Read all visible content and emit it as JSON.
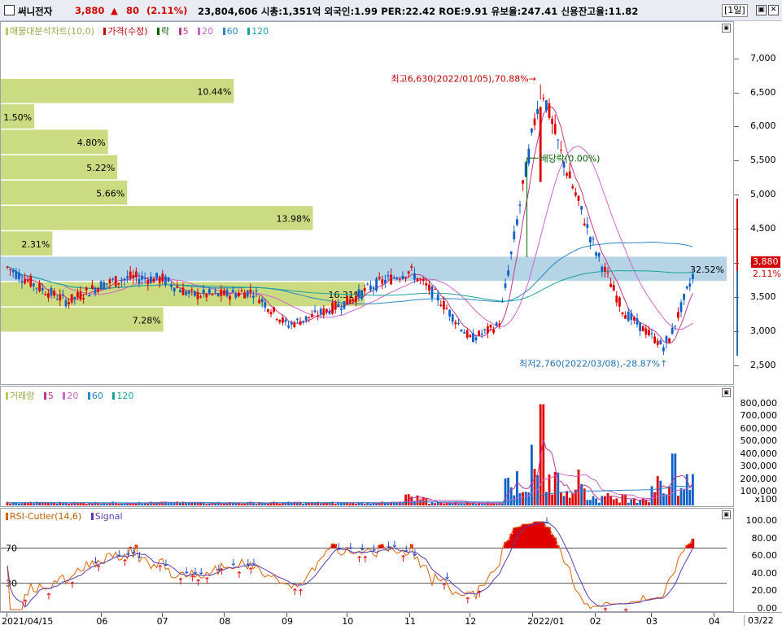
{
  "header": {
    "stock_name": "써니전자",
    "price": "3,880",
    "change_arrow": "▲",
    "change_value": "80",
    "change_pct": "(2.11%)",
    "stats": "23,804,606  시총:1,351억  외국인:1.99  PER:22.42  ROE:9.91  유보율:247.41  신용잔고율:11.82",
    "period": "[1일]"
  },
  "price_panel": {
    "legend": {
      "volume_profile": "매물대분석차트(10,0)",
      "price": "가격(수정)",
      "down": "락",
      "ma5": "5",
      "ma20": "20",
      "ma60": "60",
      "ma120": "120"
    },
    "annotations": {
      "high": "최고6,630(2022/01/05),70.88%",
      "low": "최저2,760(2022/03/08),-28.87%",
      "ex": "배당락(0.00%)"
    },
    "volume_profile": [
      {
        "label": "10.44%",
        "pct": 10.44
      },
      {
        "label": "1.50%",
        "pct": 1.5
      },
      {
        "label": "4.80%",
        "pct": 4.8
      },
      {
        "label": "5.22%",
        "pct": 5.22
      },
      {
        "label": "5.66%",
        "pct": 5.66
      },
      {
        "label": "13.98%",
        "pct": 13.98
      },
      {
        "label": "2.31%",
        "pct": 2.31
      },
      {
        "label": "32.52%",
        "pct": 32.52
      },
      {
        "label": "16.31%",
        "pct": 16.31
      },
      {
        "label": "7.28%",
        "pct": 7.28
      }
    ],
    "axis_ticks": [
      "7,000",
      "6,500",
      "6,000",
      "5,500",
      "5,000",
      "4,500",
      "4,000",
      "3,500",
      "3,000",
      "2,500"
    ],
    "current_price": "3,880",
    "current_pct": "2.11%"
  },
  "volume_panel": {
    "legend": {
      "name": "거래량",
      "ma5": "5",
      "ma20": "20",
      "ma60": "60",
      "ma120": "120"
    },
    "axis_ticks": [
      "800,000",
      "700,000",
      "600,000",
      "500,000",
      "400,000",
      "300,000",
      "200,000",
      "100,000"
    ],
    "unit": "x100"
  },
  "rsi_panel": {
    "legend": {
      "name": "RSI-Cutler(14,6)",
      "signal": "Signal"
    },
    "levels": {
      "upper": "70",
      "lower": "30"
    },
    "axis_ticks": [
      "100.00",
      "80.00",
      "60.00",
      "40.00",
      "20.00",
      "0.00"
    ]
  },
  "date_axis": {
    "labels": [
      "2021/04/15",
      "06",
      "07",
      "08",
      "09",
      "10",
      "11",
      "12",
      "2022/01",
      "02",
      "03",
      "04"
    ],
    "end_label": "03/22"
  },
  "chart_data": {
    "type": "candlestick",
    "x_start": "2021/04/15",
    "x_end": "2022/03/22",
    "ylim": [
      2300,
      7400
    ],
    "series": [
      {
        "name": "가격(수정)",
        "points": [
          [
            "2021/04/15",
            3950
          ],
          [
            "2021/05/01",
            3650
          ],
          [
            "2021/05/15",
            3450
          ],
          [
            "2021/06/01",
            3700
          ],
          [
            "2021/06/15",
            3800
          ],
          [
            "2021/07/01",
            3780
          ],
          [
            "2021/07/15",
            3550
          ],
          [
            "2021/08/01",
            3550
          ],
          [
            "2021/08/15",
            3600
          ],
          [
            "2021/09/01",
            3100
          ],
          [
            "2021/09/15",
            3250
          ],
          [
            "2021/10/01",
            3450
          ],
          [
            "2021/10/15",
            3700
          ],
          [
            "2021/11/01",
            3900
          ],
          [
            "2021/11/15",
            3500
          ],
          [
            "2021/12/01",
            2900
          ],
          [
            "2021/12/15",
            3100
          ],
          [
            "2022/01/05",
            6630
          ],
          [
            "2022/01/15",
            5600
          ],
          [
            "2022/02/01",
            4200
          ],
          [
            "2022/02/15",
            3300
          ],
          [
            "2022/03/08",
            2760
          ],
          [
            "2022/03/22",
            3880
          ]
        ]
      }
    ],
    "high": {
      "value": 6630,
      "date": "2022/01/05",
      "pct": 70.88
    },
    "low": {
      "value": 2760,
      "date": "2022/03/08",
      "pct": -28.87
    },
    "volume_max": 800000,
    "rsi_range": [
      0,
      100
    ]
  }
}
